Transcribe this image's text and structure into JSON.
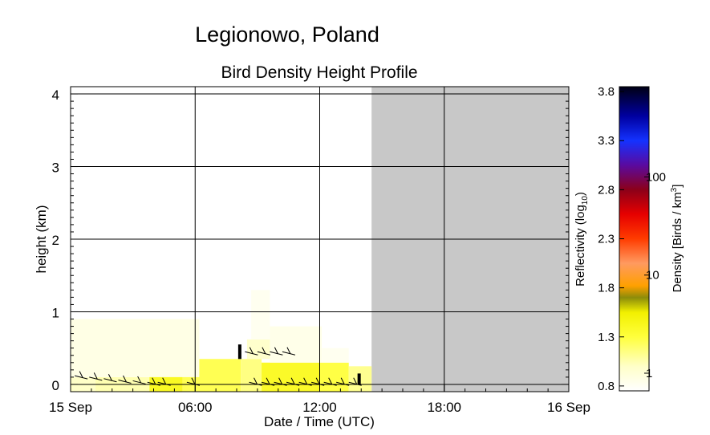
{
  "chart_data": {
    "type": "heatmap",
    "suptitle": "Legionowo, Poland",
    "title": "Bird Density Height Profile",
    "xlabel": "Date / Time (UTC)",
    "ylabel": "height (km)",
    "x_unit": "hours UTC",
    "xlim": [
      0,
      24
    ],
    "ylim": [
      -0.1,
      4.1
    ],
    "xticks": [
      {
        "value": 0,
        "label": "15 Sep"
      },
      {
        "value": 6,
        "label": "06:00"
      },
      {
        "value": 12,
        "label": "12:00"
      },
      {
        "value": 18,
        "label": "18:00"
      },
      {
        "value": 24,
        "label": "16 Sep"
      }
    ],
    "yticks": [
      {
        "value": 0,
        "label": "0"
      },
      {
        "value": 1,
        "label": "1"
      },
      {
        "value": 2,
        "label": "2"
      },
      {
        "value": 3,
        "label": "3"
      },
      {
        "value": 4,
        "label": "4"
      }
    ],
    "no_data_start_hour": 14.5,
    "no_data_color": "#c8c8c8",
    "grid": true,
    "colorbar": {
      "left_label": "Reflectivity (log",
      "left_label_sub": "10",
      "left_label_end": ")",
      "right_label": "Density [Birds / km",
      "right_label_sup": "3",
      "right_label_end": "]",
      "left_ticks": [
        {
          "value": 0.8,
          "label": "0.8"
        },
        {
          "value": 1.3,
          "label": "1.3"
        },
        {
          "value": 1.8,
          "label": "1.8"
        },
        {
          "value": 2.3,
          "label": "2.3"
        },
        {
          "value": 2.8,
          "label": "2.8"
        },
        {
          "value": 3.3,
          "label": "3.3"
        },
        {
          "value": 3.8,
          "label": "3.8"
        }
      ],
      "range": [
        0.75,
        3.85
      ],
      "right_ticks": [
        {
          "value": 0.93,
          "label": "1"
        },
        {
          "value": 1.93,
          "label": "10"
        },
        {
          "value": 2.93,
          "label": "100"
        }
      ],
      "color_stops": [
        {
          "value": 0.75,
          "color": "#ffffff"
        },
        {
          "value": 1.0,
          "color": "#ffffc8"
        },
        {
          "value": 1.3,
          "color": "#ffff3c"
        },
        {
          "value": 1.55,
          "color": "#f2f000"
        },
        {
          "value": 1.7,
          "color": "#8c8c0a"
        },
        {
          "value": 1.82,
          "color": "#ffa000"
        },
        {
          "value": 2.05,
          "color": "#ff9a60"
        },
        {
          "value": 2.3,
          "color": "#ff3c00"
        },
        {
          "value": 2.55,
          "color": "#e60000"
        },
        {
          "value": 2.8,
          "color": "#8c0019"
        },
        {
          "value": 3.05,
          "color": "#5a0aa0"
        },
        {
          "value": 3.3,
          "color": "#1432ff"
        },
        {
          "value": 3.55,
          "color": "#0000a0"
        },
        {
          "value": 3.85,
          "color": "#000014"
        }
      ]
    },
    "cells": [
      {
        "x0": 0.0,
        "x1": 1.2,
        "y0": -0.1,
        "y1": 0.1,
        "value": 1.0
      },
      {
        "x0": 1.2,
        "x1": 3.8,
        "y0": -0.1,
        "y1": 0.1,
        "value": 1.05
      },
      {
        "x0": 3.8,
        "x1": 5.4,
        "y0": -0.1,
        "y1": 0.35,
        "value": 1.4
      },
      {
        "x0": 5.4,
        "x1": 8.2,
        "y0": -0.1,
        "y1": 0.35,
        "value": 1.25
      },
      {
        "x0": 8.2,
        "x1": 9.2,
        "y0": -0.1,
        "y1": 0.35,
        "value": 1.15
      },
      {
        "x0": 9.2,
        "x1": 12.0,
        "y0": -0.1,
        "y1": 0.3,
        "value": 1.38
      },
      {
        "x0": 12.0,
        "x1": 13.4,
        "y0": -0.1,
        "y1": 0.3,
        "value": 1.28
      },
      {
        "x0": 13.4,
        "x1": 14.5,
        "y0": -0.1,
        "y1": 0.25,
        "value": 1.12
      },
      {
        "x0": 0.0,
        "x1": 6.2,
        "y0": 0.1,
        "y1": 0.9,
        "value": 0.87
      },
      {
        "x0": 8.5,
        "x1": 11.4,
        "y0": 0.35,
        "y1": 0.62,
        "value": 0.98
      },
      {
        "x0": 8.7,
        "x1": 9.6,
        "y0": 0.62,
        "y1": 1.3,
        "value": 0.82
      },
      {
        "x0": 9.6,
        "x1": 12.1,
        "y0": 0.3,
        "y1": 0.8,
        "value": 0.85
      },
      {
        "x0": 12.1,
        "x1": 13.4,
        "y0": 0.3,
        "y1": 0.5,
        "value": 0.82
      }
    ],
    "wind_barbs": [
      {
        "x": 0.2,
        "y": 0.12
      },
      {
        "x": 0.9,
        "y": 0.1
      },
      {
        "x": 1.6,
        "y": 0.08
      },
      {
        "x": 2.3,
        "y": 0.06
      },
      {
        "x": 3.0,
        "y": 0.05
      },
      {
        "x": 3.7,
        "y": 0.03
      },
      {
        "x": 4.2,
        "y": 0.03
      },
      {
        "x": 5.6,
        "y": 0.03
      },
      {
        "x": 8.6,
        "y": 0.03
      },
      {
        "x": 9.2,
        "y": 0.03
      },
      {
        "x": 9.8,
        "y": 0.03
      },
      {
        "x": 10.4,
        "y": 0.03
      },
      {
        "x": 11.0,
        "y": 0.03
      },
      {
        "x": 11.6,
        "y": 0.03
      },
      {
        "x": 12.2,
        "y": 0.03
      },
      {
        "x": 12.8,
        "y": 0.03
      },
      {
        "x": 13.4,
        "y": 0.03
      },
      {
        "x": 8.4,
        "y": 0.45
      },
      {
        "x": 9.0,
        "y": 0.45
      },
      {
        "x": 9.6,
        "y": 0.45
      },
      {
        "x": 10.2,
        "y": 0.45
      }
    ],
    "markers": [
      {
        "x": 8.15,
        "y0": 0.35,
        "y1": 0.55
      },
      {
        "x": 13.9,
        "y0": 0.0,
        "y1": 0.15
      }
    ]
  }
}
